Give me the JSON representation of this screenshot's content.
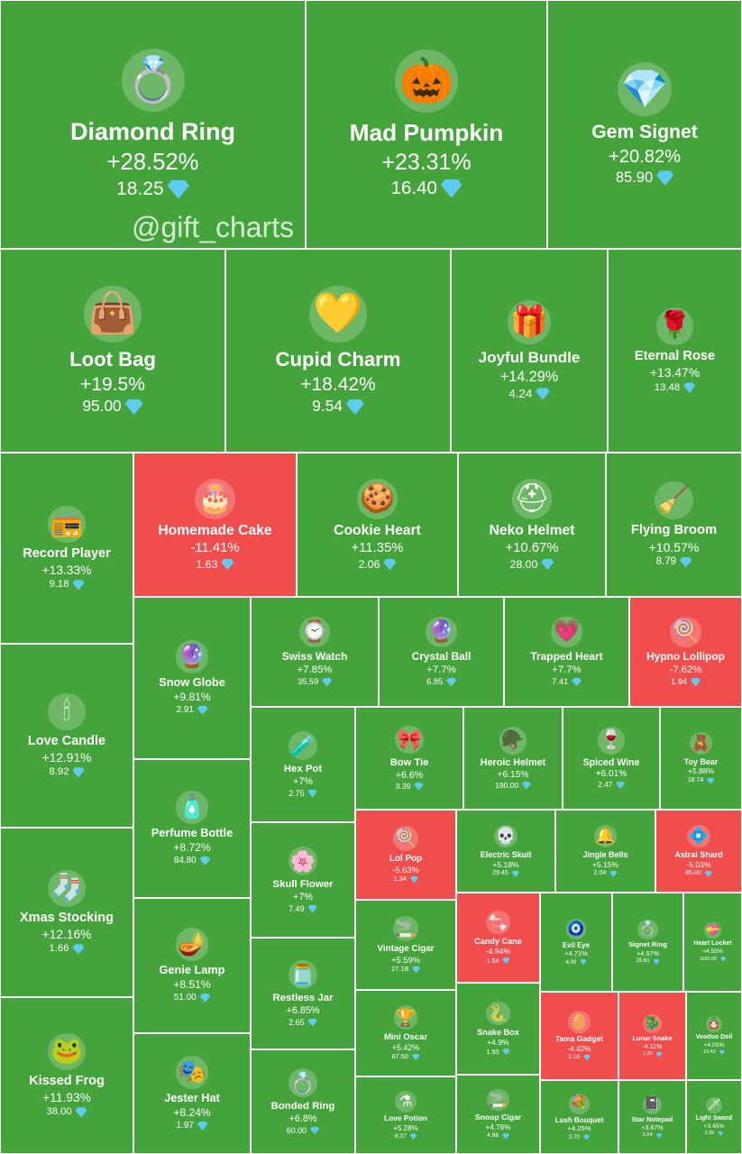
{
  "watermark": "@gift_charts",
  "colors": {
    "up": "#45a33b",
    "down": "#f14d4d",
    "gem": "#5ecbf2"
  },
  "price_icon": "diamond-icon",
  "chart_data": {
    "type": "treemap",
    "items": [
      {
        "name": "Diamond Ring",
        "change": "+28.52%",
        "price": "18.25",
        "icon": "ring-box-icon"
      },
      {
        "name": "Mad Pumpkin",
        "change": "+23.31%",
        "price": "16.40",
        "icon": "pumpkin-icon"
      },
      {
        "name": "Gem Signet",
        "change": "+20.82%",
        "price": "85.90",
        "icon": "gem-ring-icon"
      },
      {
        "name": "Loot Bag",
        "change": "+19.5%",
        "price": "95.00",
        "icon": "bag-icon"
      },
      {
        "name": "Cupid Charm",
        "change": "+18.42%",
        "price": "9.54",
        "icon": "heart-lock-icon"
      },
      {
        "name": "Joyful Bundle",
        "change": "+14.29%",
        "price": "4.24",
        "icon": "gift-bundle-icon"
      },
      {
        "name": "Eternal Rose",
        "change": "+13.47%",
        "price": "13.48",
        "icon": "rose-icon"
      },
      {
        "name": "Record Player",
        "change": "+13.33%",
        "price": "9.18",
        "icon": "record-player-icon"
      },
      {
        "name": "Homemade Cake",
        "change": "-11.41%",
        "price": "1.63",
        "icon": "cake-icon"
      },
      {
        "name": "Cookie Heart",
        "change": "+11.35%",
        "price": "2.06",
        "icon": "cookie-heart-icon"
      },
      {
        "name": "Neko Helmet",
        "change": "+10.67%",
        "price": "28.00",
        "icon": "helmet-icon"
      },
      {
        "name": "Flying Broom",
        "change": "+10.57%",
        "price": "8.79",
        "icon": "broom-icon"
      },
      {
        "name": "Snow Globe",
        "change": "+9.81%",
        "price": "2.91",
        "icon": "snow-globe-icon"
      },
      {
        "name": "Swiss Watch",
        "change": "+7.85%",
        "price": "35.59",
        "icon": "watch-icon"
      },
      {
        "name": "Crystal Ball",
        "change": "+7.7%",
        "price": "6.85",
        "icon": "crystal-ball-icon"
      },
      {
        "name": "Trapped Heart",
        "change": "+7.7%",
        "price": "7.41",
        "icon": "trapped-heart-icon"
      },
      {
        "name": "Hypno Lollipop",
        "change": "-7.62%",
        "price": "1.94",
        "icon": "lollipop-icon"
      },
      {
        "name": "Love Candle",
        "change": "+12.91%",
        "price": "8.92",
        "icon": "candle-icon"
      },
      {
        "name": "Hex Pot",
        "change": "+7%",
        "price": "2.75",
        "icon": "cauldron-icon"
      },
      {
        "name": "Bow Tie",
        "change": "+6.6%",
        "price": "3.39",
        "icon": "bow-tie-icon"
      },
      {
        "name": "Heroic Helmet",
        "change": "+6.15%",
        "price": "190.00",
        "icon": "spartan-helmet-icon"
      },
      {
        "name": "Spiced Wine",
        "change": "+6.01%",
        "price": "2.47",
        "icon": "wine-icon"
      },
      {
        "name": "Toy Bear",
        "change": "+5.88%",
        "price": "18.74",
        "icon": "teddy-bear-icon"
      },
      {
        "name": "Perfume Bottle",
        "change": "+8.72%",
        "price": "84.80",
        "icon": "perfume-icon"
      },
      {
        "name": "Lol Pop",
        "change": "-5.63%",
        "price": "1.34",
        "icon": "lollipop-icon"
      },
      {
        "name": "Electric Skull",
        "change": "+5.18%",
        "price": "29.45",
        "icon": "skull-icon"
      },
      {
        "name": "Jingle Bells",
        "change": "+5.15%",
        "price": "2.04",
        "icon": "bells-icon"
      },
      {
        "name": "Astral Shard",
        "change": "-5.03%",
        "price": "85.00",
        "icon": "crystal-shard-icon"
      },
      {
        "name": "Skull Flower",
        "change": "+7%",
        "price": "7.49",
        "icon": "skull-flower-icon"
      },
      {
        "name": "Vintage Cigar",
        "change": "+5.59%",
        "price": "27.18",
        "icon": "cigar-icon"
      },
      {
        "name": "Candy Cane",
        "change": "-4.94%",
        "price": "1.54",
        "icon": "candy-cane-icon"
      },
      {
        "name": "Evil Eye",
        "change": "+4.71%",
        "price": "4.00",
        "icon": "evil-eye-icon"
      },
      {
        "name": "Signet Ring",
        "change": "+4.57%",
        "price": "25.81",
        "icon": "signet-ring-icon"
      },
      {
        "name": "Heart Locket",
        "change": "+4.55%",
        "price": "1150.00",
        "icon": "locket-icon"
      },
      {
        "name": "Xmas Stocking",
        "change": "+12.16%",
        "price": "1.66",
        "icon": "stocking-icon"
      },
      {
        "name": "Genie Lamp",
        "change": "+8.51%",
        "price": "51.00",
        "icon": "genie-lamp-icon"
      },
      {
        "name": "Restless Jar",
        "change": "+6.85%",
        "price": "2.65",
        "icon": "jar-icon"
      },
      {
        "name": "Mini Oscar",
        "change": "+5.42%",
        "price": "87.50",
        "icon": "trophy-icon"
      },
      {
        "name": "Snake Box",
        "change": "+4.9%",
        "price": "1.50",
        "icon": "snake-box-icon"
      },
      {
        "name": "Tama Gadget",
        "change": "-4.42%",
        "price": "2.16",
        "icon": "tamagotchi-icon"
      },
      {
        "name": "Lunar Snake",
        "change": "-4.11%",
        "price": "1.30",
        "icon": "lunar-snake-icon"
      },
      {
        "name": "Voodoo Doll",
        "change": "+4.05%",
        "price": "15.43",
        "icon": "voodoo-doll-icon"
      },
      {
        "name": "Kissed Frog",
        "change": "+11.93%",
        "price": "38.00",
        "icon": "frog-icon"
      },
      {
        "name": "Jester Hat",
        "change": "+8.24%",
        "price": "1.97",
        "icon": "jester-hat-icon"
      },
      {
        "name": "Bonded Ring",
        "change": "+6.8%",
        "price": "60.00",
        "icon": "bonded-ring-icon"
      },
      {
        "name": "Love Potion",
        "change": "+5.28%",
        "price": "8.37",
        "icon": "potion-icon"
      },
      {
        "name": "Snoop Cigar",
        "change": "+4.76%",
        "price": "4.86",
        "icon": "snoop-cigar-icon"
      },
      {
        "name": "Lush Bouquet",
        "change": "+4.25%",
        "price": "2.70",
        "icon": "bouquet-icon"
      },
      {
        "name": "Star Notepad",
        "change": "+3.67%",
        "price": "2.54",
        "icon": "notepad-icon"
      },
      {
        "name": "Light Sword",
        "change": "+3.45%",
        "price": "3.30",
        "icon": "sword-icon"
      }
    ]
  }
}
